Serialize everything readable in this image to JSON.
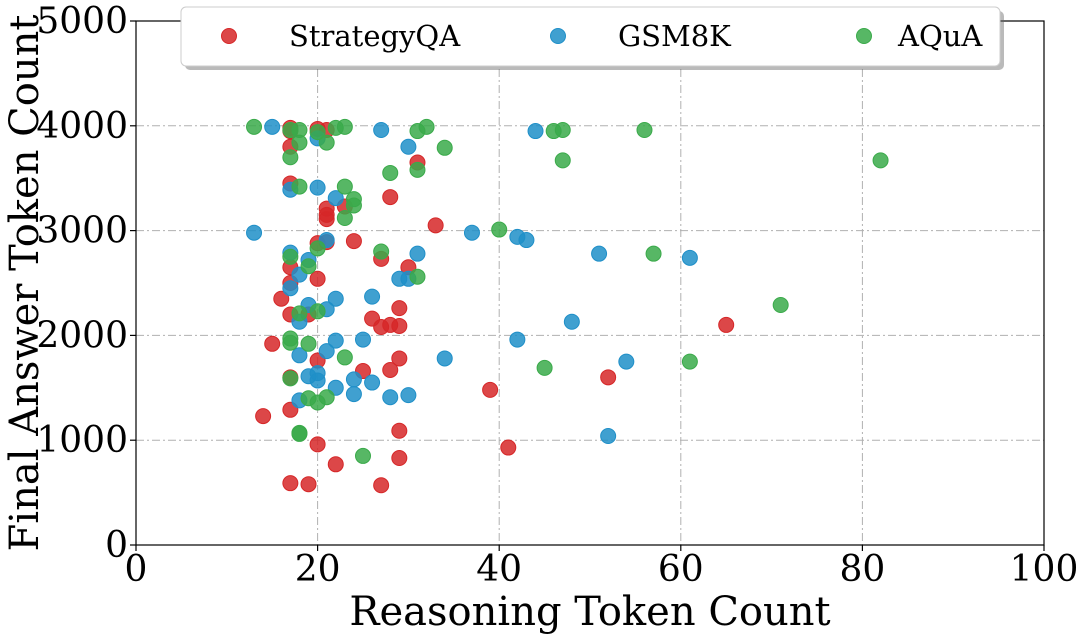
{
  "chart_data": {
    "type": "scatter",
    "title": "",
    "xlabel": "Reasoning Token Count",
    "ylabel": "Final Answer Token Count",
    "xlim": [
      0,
      100
    ],
    "ylim": [
      0,
      5000
    ],
    "xticks": [
      0,
      20,
      40,
      60,
      80,
      100
    ],
    "yticks": [
      0,
      1000,
      2000,
      3000,
      4000,
      5000
    ],
    "xtick_labels": [
      "0",
      "20",
      "40",
      "60",
      "80",
      "100"
    ],
    "ytick_labels": [
      "0",
      "1000",
      "2000",
      "3000",
      "4000",
      "5000"
    ],
    "grid": true,
    "legend_position": "top-center",
    "series": [
      {
        "name": "StrategyQA",
        "color": "#d62728",
        "points": [
          [
            17,
            3980
          ],
          [
            20,
            3970
          ],
          [
            21,
            3960
          ],
          [
            17,
            3950
          ],
          [
            17,
            3800
          ],
          [
            31,
            3650
          ],
          [
            17,
            3450
          ],
          [
            28,
            3320
          ],
          [
            21,
            3210
          ],
          [
            23,
            3230
          ],
          [
            21,
            3150
          ],
          [
            21,
            3110
          ],
          [
            33,
            3050
          ],
          [
            24,
            2900
          ],
          [
            21,
            2890
          ],
          [
            20,
            2880
          ],
          [
            27,
            2730
          ],
          [
            17,
            2650
          ],
          [
            30,
            2650
          ],
          [
            20,
            2540
          ],
          [
            17,
            2500
          ],
          [
            16,
            2350
          ],
          [
            29,
            2260
          ],
          [
            17,
            2200
          ],
          [
            19,
            2200
          ],
          [
            26,
            2160
          ],
          [
            27,
            2080
          ],
          [
            28,
            2100
          ],
          [
            29,
            2090
          ],
          [
            65,
            2100
          ],
          [
            15,
            1920
          ],
          [
            20,
            1760
          ],
          [
            29,
            1780
          ],
          [
            25,
            1660
          ],
          [
            28,
            1670
          ],
          [
            17,
            1600
          ],
          [
            52,
            1600
          ],
          [
            39,
            1480
          ],
          [
            14,
            1230
          ],
          [
            17,
            1290
          ],
          [
            29,
            1090
          ],
          [
            20,
            960
          ],
          [
            41,
            930
          ],
          [
            22,
            770
          ],
          [
            29,
            830
          ],
          [
            17,
            590
          ],
          [
            19,
            580
          ],
          [
            27,
            570
          ]
        ]
      },
      {
        "name": "GSM8K",
        "color": "#1f8fc8",
        "points": [
          [
            15,
            3990
          ],
          [
            27,
            3960
          ],
          [
            44,
            3950
          ],
          [
            20,
            3880
          ],
          [
            30,
            3800
          ],
          [
            17,
            3390
          ],
          [
            20,
            3410
          ],
          [
            22,
            3310
          ],
          [
            13,
            2980
          ],
          [
            37,
            2980
          ],
          [
            42,
            2940
          ],
          [
            43,
            2910
          ],
          [
            21,
            2910
          ],
          [
            17,
            2790
          ],
          [
            19,
            2720
          ],
          [
            31,
            2780
          ],
          [
            51,
            2780
          ],
          [
            61,
            2740
          ],
          [
            18,
            2580
          ],
          [
            17,
            2450
          ],
          [
            29,
            2540
          ],
          [
            30,
            2540
          ],
          [
            26,
            2370
          ],
          [
            22,
            2350
          ],
          [
            19,
            2290
          ],
          [
            21,
            2250
          ],
          [
            18,
            2130
          ],
          [
            48,
            2130
          ],
          [
            22,
            1950
          ],
          [
            25,
            1960
          ],
          [
            42,
            1960
          ],
          [
            18,
            1810
          ],
          [
            21,
            1850
          ],
          [
            34,
            1780
          ],
          [
            54,
            1750
          ],
          [
            19,
            1610
          ],
          [
            20,
            1570
          ],
          [
            20,
            1640
          ],
          [
            24,
            1580
          ],
          [
            26,
            1550
          ],
          [
            22,
            1500
          ],
          [
            24,
            1440
          ],
          [
            18,
            1380
          ],
          [
            28,
            1410
          ],
          [
            30,
            1430
          ],
          [
            52,
            1040
          ]
        ]
      },
      {
        "name": "AQuA",
        "color": "#3aaa4a",
        "points": [
          [
            13,
            3990
          ],
          [
            17,
            3960
          ],
          [
            18,
            3960
          ],
          [
            20,
            3940
          ],
          [
            22,
            3980
          ],
          [
            23,
            3990
          ],
          [
            31,
            3950
          ],
          [
            32,
            3990
          ],
          [
            46,
            3950
          ],
          [
            47,
            3960
          ],
          [
            56,
            3960
          ],
          [
            18,
            3840
          ],
          [
            21,
            3840
          ],
          [
            34,
            3790
          ],
          [
            17,
            3700
          ],
          [
            47,
            3670
          ],
          [
            82,
            3670
          ],
          [
            31,
            3580
          ],
          [
            28,
            3550
          ],
          [
            18,
            3420
          ],
          [
            23,
            3420
          ],
          [
            24,
            3300
          ],
          [
            24,
            3240
          ],
          [
            23,
            3120
          ],
          [
            40,
            3010
          ],
          [
            20,
            2830
          ],
          [
            27,
            2800
          ],
          [
            57,
            2780
          ],
          [
            17,
            2750
          ],
          [
            19,
            2660
          ],
          [
            31,
            2560
          ],
          [
            71,
            2290
          ],
          [
            18,
            2210
          ],
          [
            20,
            2230
          ],
          [
            17,
            1970
          ],
          [
            19,
            1920
          ],
          [
            17,
            1930
          ],
          [
            23,
            1790
          ],
          [
            61,
            1750
          ],
          [
            45,
            1690
          ],
          [
            17,
            1590
          ],
          [
            21,
            1410
          ],
          [
            19,
            1400
          ],
          [
            20,
            1360
          ],
          [
            18,
            1070
          ],
          [
            18,
            1060
          ],
          [
            25,
            850
          ]
        ]
      }
    ]
  }
}
